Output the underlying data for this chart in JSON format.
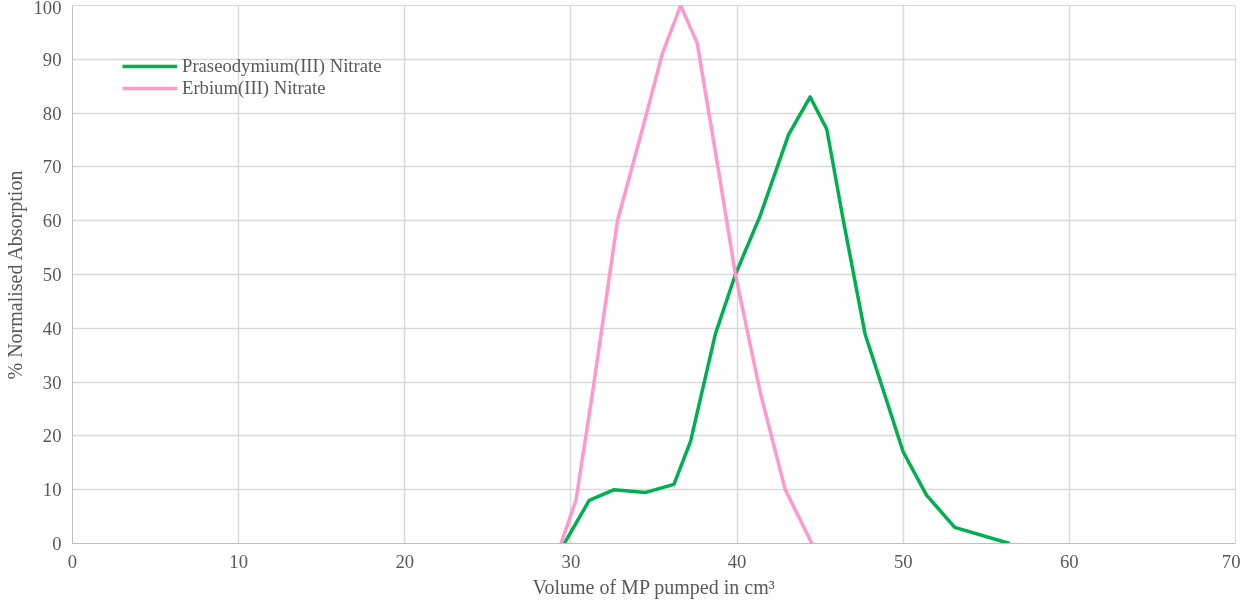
{
  "chart_data": {
    "type": "line",
    "xlabel": "Volume of MP pumped in cm³",
    "ylabel": "% Normalised Absorption",
    "xlim": [
      0,
      70
    ],
    "xticks": [
      0,
      10,
      20,
      30,
      40,
      50,
      60,
      70
    ],
    "ylim": [
      0,
      100
    ],
    "yticks": [
      0,
      10,
      20,
      30,
      40,
      50,
      60,
      70,
      80,
      90,
      100
    ],
    "grid": true,
    "legend": "top left",
    "marker": "none",
    "line_style": "solid",
    "series": [
      {
        "name": "Praseodymium(III) Nitrate",
        "color": "#00b050",
        "x": [
          29.6,
          31.1,
          32.6,
          34.5,
          36.2,
          37.2,
          38.7,
          39.9,
          41.4,
          43.1,
          44.4,
          45.4,
          46.4,
          47.7,
          50.0,
          51.4,
          53.1,
          56.4
        ],
        "values": [
          0,
          8,
          10,
          9.5,
          11,
          19,
          39,
          50,
          61,
          76,
          83,
          77,
          60,
          39,
          17,
          9,
          3,
          0
        ]
      },
      {
        "name": "Erbium(III) Nitrate",
        "color": "#ff99cc",
        "x": [
          29.4,
          30.3,
          31.3,
          32.8,
          34.3,
          35.5,
          36.6,
          37.6,
          38.9,
          39.9,
          41.4,
          42.9,
          44.5
        ],
        "values": [
          0,
          8,
          28,
          60,
          77,
          91,
          100,
          93,
          69,
          50,
          28,
          10,
          0
        ]
      }
    ]
  }
}
